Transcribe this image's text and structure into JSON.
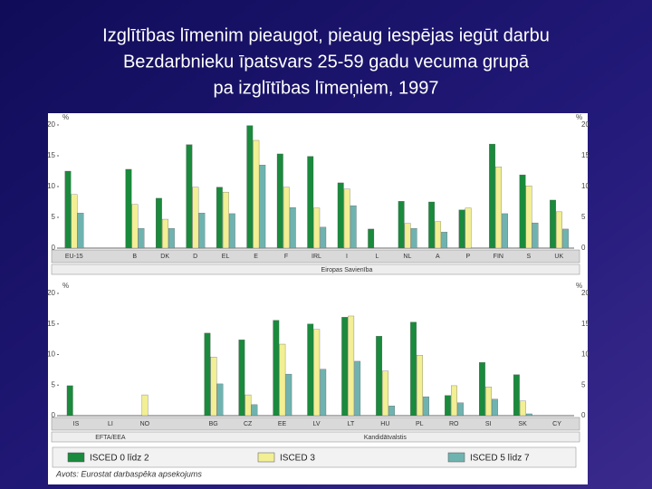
{
  "title_lines": [
    "Izglītības līmenim pieaugot, pieaug iespējas iegūt darbu",
    "Bezdarbnieku īpatsvars 25-59 gadu vecuma grupā",
    "pa izglītības līmeņiem, 1997"
  ],
  "source": "Avots: Eurostat darbaspēka apsekojums",
  "chart_data": [
    {
      "type": "bar",
      "y_unit": "%",
      "categories": [
        "EU-15",
        "B",
        "DK",
        "D",
        "EL",
        "E",
        "F",
        "IRL",
        "I",
        "L",
        "NL",
        "A",
        "P",
        "FIN",
        "S",
        "UK"
      ],
      "group_labels": [
        "Eiropas Savienība"
      ],
      "series": [
        {
          "name": "ISCED 0 līdz 2",
          "color": "#1a8a3c",
          "values": [
            12.5,
            12.8,
            8.1,
            16.8,
            9.9,
            19.9,
            15.3,
            14.9,
            10.6,
            3.1,
            7.6,
            7.5,
            6.2,
            16.9,
            11.9,
            7.8
          ]
        },
        {
          "name": "ISCED 3",
          "color": "#f2ef94",
          "values": [
            8.7,
            7.1,
            4.7,
            9.9,
            9.1,
            17.5,
            9.9,
            6.5,
            9.6,
            null,
            4.0,
            4.3,
            6.5,
            13.2,
            10.1,
            5.9
          ]
        },
        {
          "name": "ISCED 5 līdz 7",
          "color": "#6fb3b0",
          "values": [
            5.7,
            3.2,
            3.2,
            5.7,
            5.6,
            13.5,
            6.6,
            3.4,
            6.9,
            null,
            3.2,
            2.6,
            null,
            5.6,
            4.1,
            3.1
          ]
        }
      ],
      "ylim": [
        0,
        20
      ],
      "yticks": [
        0,
        5,
        10,
        15,
        20
      ]
    },
    {
      "type": "bar",
      "y_unit": "%",
      "categories": [
        "IS",
        "LI",
        "NO",
        "BG",
        "CZ",
        "EE",
        "LV",
        "LT",
        "HU",
        "PL",
        "RO",
        "SI",
        "SK",
        "CY"
      ],
      "group_labels": [
        "EFTA/EEA",
        "Kandidātvalstis"
      ],
      "series": [
        {
          "values": [
            4.9,
            null,
            null,
            13.5,
            12.4,
            15.6,
            15.0,
            16.1,
            13.0,
            15.3,
            3.3,
            8.7,
            6.7,
            null
          ]
        },
        {
          "values": [
            null,
            null,
            3.4,
            9.6,
            3.4,
            11.7,
            14.1,
            16.3,
            7.3,
            9.9,
            4.9,
            4.7,
            2.4,
            null
          ]
        },
        {
          "values": [
            null,
            null,
            null,
            5.2,
            1.8,
            6.8,
            7.6,
            8.9,
            1.6,
            3.1,
            2.1,
            2.7,
            0.3,
            null
          ]
        }
      ],
      "ylim": [
        0,
        20
      ],
      "yticks": [
        0,
        5,
        10,
        15,
        20
      ]
    }
  ]
}
